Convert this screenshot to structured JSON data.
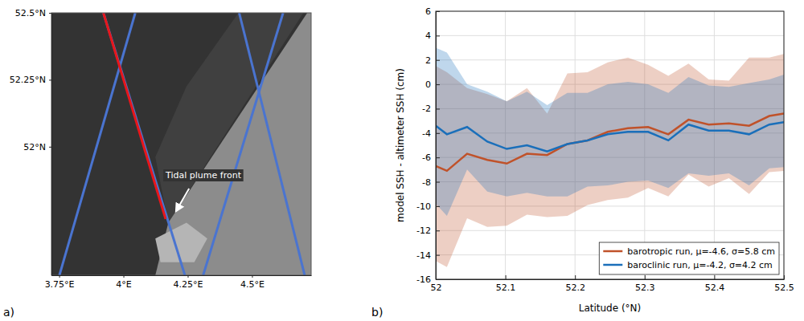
{
  "chart_data": [
    {
      "type": "map",
      "panel_label": "a)",
      "xlim": [
        3.72,
        4.73
      ],
      "ylim": [
        51.52,
        52.5
      ],
      "xticks": [
        {
          "value": 3.75,
          "label": "3.75°E"
        },
        {
          "value": 4,
          "label": "4°E"
        },
        {
          "value": 4.25,
          "label": "4.25°E"
        },
        {
          "value": 4.5,
          "label": "4.5°E"
        }
      ],
      "yticks": [
        {
          "value": 52,
          "label": "52°N"
        },
        {
          "value": 52.25,
          "label": "52.25°N"
        },
        {
          "value": 52.5,
          "label": "52.5°N"
        }
      ],
      "series": [
        {
          "color": "#4a74d0",
          "x": [
            3.922,
            4.239
          ],
          "values": [
            52.5,
            51.52
          ]
        },
        {
          "color": "#4a74d0",
          "x": [
            4.046,
            3.751
          ],
          "values": [
            52.5,
            51.52
          ]
        },
        {
          "color": "#4a74d0",
          "x": [
            4.621,
            4.31
          ],
          "values": [
            52.5,
            51.52
          ]
        },
        {
          "color": "#4a74d0",
          "x": [
            4.45,
            4.705
          ],
          "values": [
            52.5,
            51.52
          ]
        },
        {
          "color": "#e8161b",
          "x": [
            3.922,
            4.164
          ],
          "values": [
            52.5,
            51.73
          ]
        }
      ],
      "annotations": [
        {
          "text": "Tidal plume front"
        }
      ]
    },
    {
      "type": "line",
      "panel_label": "b)",
      "xlabel": "Latitude (°N)",
      "ylabel": "model SSH - altimeter SSH (cm)",
      "xlim": [
        52,
        52.5
      ],
      "ylim": [
        -16,
        6
      ],
      "xticks": [
        52,
        52.1,
        52.2,
        52.3,
        52.4,
        52.5
      ],
      "yticks": [
        -16,
        -14,
        -12,
        -10,
        -8,
        -6,
        -4,
        -2,
        0,
        2,
        4,
        6
      ],
      "grid": true,
      "legend": "lower right",
      "x": [
        52.0,
        52.016,
        52.045,
        52.074,
        52.102,
        52.131,
        52.16,
        52.189,
        52.218,
        52.247,
        52.276,
        52.305,
        52.334,
        52.363,
        52.392,
        52.421,
        52.45,
        52.479,
        52.5
      ],
      "series": [
        {
          "name": "barotropic run, μ=-4.6, σ=5.8 cm",
          "color": "#c0522a",
          "values": [
            -6.7,
            -7.1,
            -5.7,
            -6.2,
            -6.5,
            -5.7,
            -5.8,
            -4.9,
            -4.6,
            -3.9,
            -3.6,
            -3.5,
            -4.1,
            -2.9,
            -3.3,
            -3.2,
            -3.4,
            -2.6,
            -2.4
          ],
          "upper": [
            1.5,
            1.0,
            -0.3,
            -0.8,
            -1.4,
            -0.3,
            -2.4,
            0.9,
            1.0,
            1.8,
            2.2,
            1.6,
            0.7,
            1.7,
            0.4,
            0.3,
            2.2,
            2.2,
            2.5
          ],
          "lower": [
            -14.5,
            -15.0,
            -11.0,
            -11.7,
            -11.6,
            -10.7,
            -10.9,
            -10.8,
            -9.9,
            -9.5,
            -9.3,
            -8.5,
            -9.2,
            -7.4,
            -8.4,
            -7.7,
            -9.0,
            -7.2,
            -7.1
          ]
        },
        {
          "name": "baroclinic run, μ=-4.2, σ=4.2 cm",
          "color": "#1a6fba",
          "values": [
            -3.4,
            -4.1,
            -3.5,
            -4.7,
            -5.3,
            -5.0,
            -5.5,
            -4.9,
            -4.6,
            -4.1,
            -3.9,
            -3.9,
            -4.6,
            -3.3,
            -3.8,
            -3.8,
            -4.1,
            -3.3,
            -3.1
          ],
          "upper": [
            3.0,
            2.6,
            0.0,
            -0.6,
            -1.4,
            -0.6,
            -1.7,
            -0.7,
            -0.7,
            0.0,
            0.2,
            0.0,
            -0.7,
            0.6,
            -0.1,
            -0.2,
            0.1,
            0.4,
            0.8
          ],
          "lower": [
            -9.8,
            -10.8,
            -7.0,
            -8.8,
            -9.2,
            -8.9,
            -9.2,
            -9.2,
            -8.4,
            -8.3,
            -8.0,
            -7.9,
            -8.5,
            -7.3,
            -7.5,
            -7.3,
            -8.3,
            -6.9,
            -6.8
          ]
        }
      ]
    }
  ]
}
